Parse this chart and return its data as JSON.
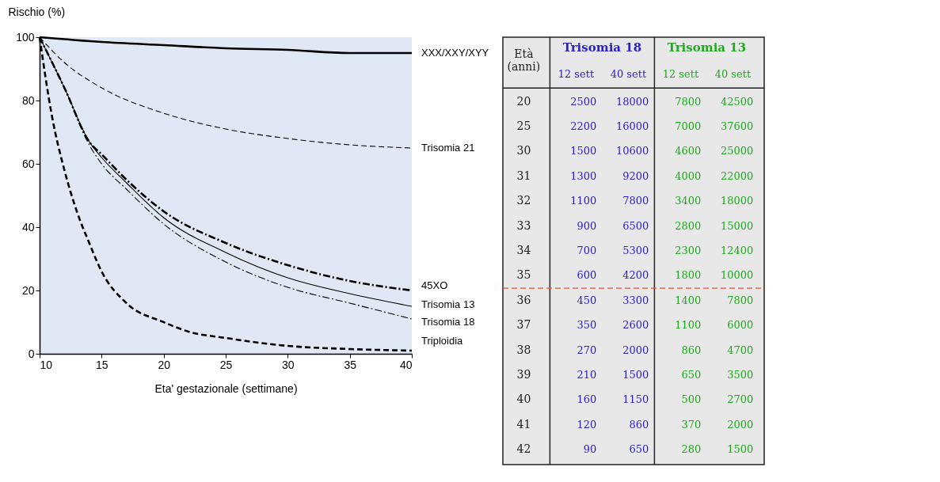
{
  "chart_data": [
    {
      "type": "line",
      "xlabel": "Eta' gestazionale (settimane)",
      "ylabel": "Rischio (%)",
      "xlim": [
        10,
        40
      ],
      "ylim": [
        0,
        100
      ],
      "xticks": [
        10,
        15,
        20,
        25,
        30,
        35,
        40
      ],
      "yticks": [
        0,
        20,
        40,
        60,
        80,
        100
      ],
      "grid": false,
      "series": [
        {
          "name": "XXX/XXY/XYY",
          "color": "#000000",
          "line_style": "solid",
          "x": [
            10,
            15,
            20,
            25,
            30,
            35,
            40
          ],
          "values": [
            100,
            98.5,
            97.5,
            96.5,
            96,
            95,
            95
          ]
        },
        {
          "name": "Trisomia 21",
          "color": "#000000",
          "line_style": "dashed",
          "x": [
            10,
            12,
            15,
            20,
            25,
            30,
            35,
            40
          ],
          "values": [
            100,
            92,
            84,
            76,
            71,
            68,
            66,
            65
          ]
        },
        {
          "name": "45XO",
          "color": "#000000",
          "line_style": "dashdot",
          "x": [
            10,
            12,
            14,
            15,
            17,
            20,
            25,
            30,
            35,
            40
          ],
          "values": [
            100,
            84,
            67,
            63,
            55,
            45,
            35,
            28,
            23,
            20
          ]
        },
        {
          "name": "Trisomia 13",
          "color": "#000000",
          "line_style": "solid",
          "x": [
            10,
            12,
            14,
            15,
            17,
            20,
            25,
            30,
            35,
            40
          ],
          "values": [
            100,
            84,
            67,
            62,
            54,
            43,
            32,
            24,
            19,
            15
          ]
        },
        {
          "name": "Trisomia 18",
          "color": "#000000",
          "line_style": "dashdot",
          "x": [
            10,
            12,
            14,
            15,
            17,
            20,
            25,
            30,
            35,
            40
          ],
          "values": [
            100,
            84,
            66,
            60,
            52,
            41,
            29,
            21,
            16,
            11
          ]
        },
        {
          "name": "Triploidia",
          "color": "#000000",
          "line_style": "dashed",
          "x": [
            10,
            11,
            12,
            13,
            14,
            15,
            17,
            20,
            22,
            25,
            30,
            35,
            40
          ],
          "values": [
            100,
            75,
            58,
            45,
            35,
            26,
            16,
            10,
            7,
            5,
            2.5,
            1.5,
            1
          ]
        }
      ]
    },
    {
      "type": "heatmap",
      "ylabel": "Età (anni)",
      "annotations": [
        "Trisomia 18",
        "Trisomia 13"
      ],
      "categories": [
        "12 sett",
        "40 sett",
        "12 sett",
        "40 sett"
      ],
      "colors": [
        "#2a1fc8",
        "#2a1fc8",
        "#22a822",
        "#22a822"
      ],
      "y_categories": [
        "20",
        "25",
        "30",
        "31",
        "32",
        "33",
        "34",
        "35",
        "36",
        "37",
        "38",
        "39",
        "40",
        "41",
        "42"
      ],
      "ref_lines": [
        {
          "axis": "y",
          "value": "35",
          "color": "#e8503a",
          "line_style": "dashed"
        }
      ],
      "cells": [
        [
          2500,
          18000,
          7800,
          42500
        ],
        [
          2200,
          16000,
          7000,
          37600
        ],
        [
          1500,
          10600,
          4600,
          25000
        ],
        [
          1300,
          9200,
          4000,
          22000
        ],
        [
          1100,
          7800,
          3400,
          18000
        ],
        [
          900,
          6500,
          2800,
          15000
        ],
        [
          700,
          5300,
          2300,
          12400
        ],
        [
          600,
          4200,
          1800,
          10000
        ],
        [
          450,
          3300,
          1400,
          7800
        ],
        [
          350,
          2600,
          1100,
          6000
        ],
        [
          270,
          2000,
          860,
          4700
        ],
        [
          210,
          1500,
          650,
          3500
        ],
        [
          160,
          1150,
          500,
          2700
        ],
        [
          120,
          860,
          370,
          2000
        ],
        [
          90,
          650,
          280,
          1500
        ]
      ],
      "data_labels": true
    }
  ]
}
